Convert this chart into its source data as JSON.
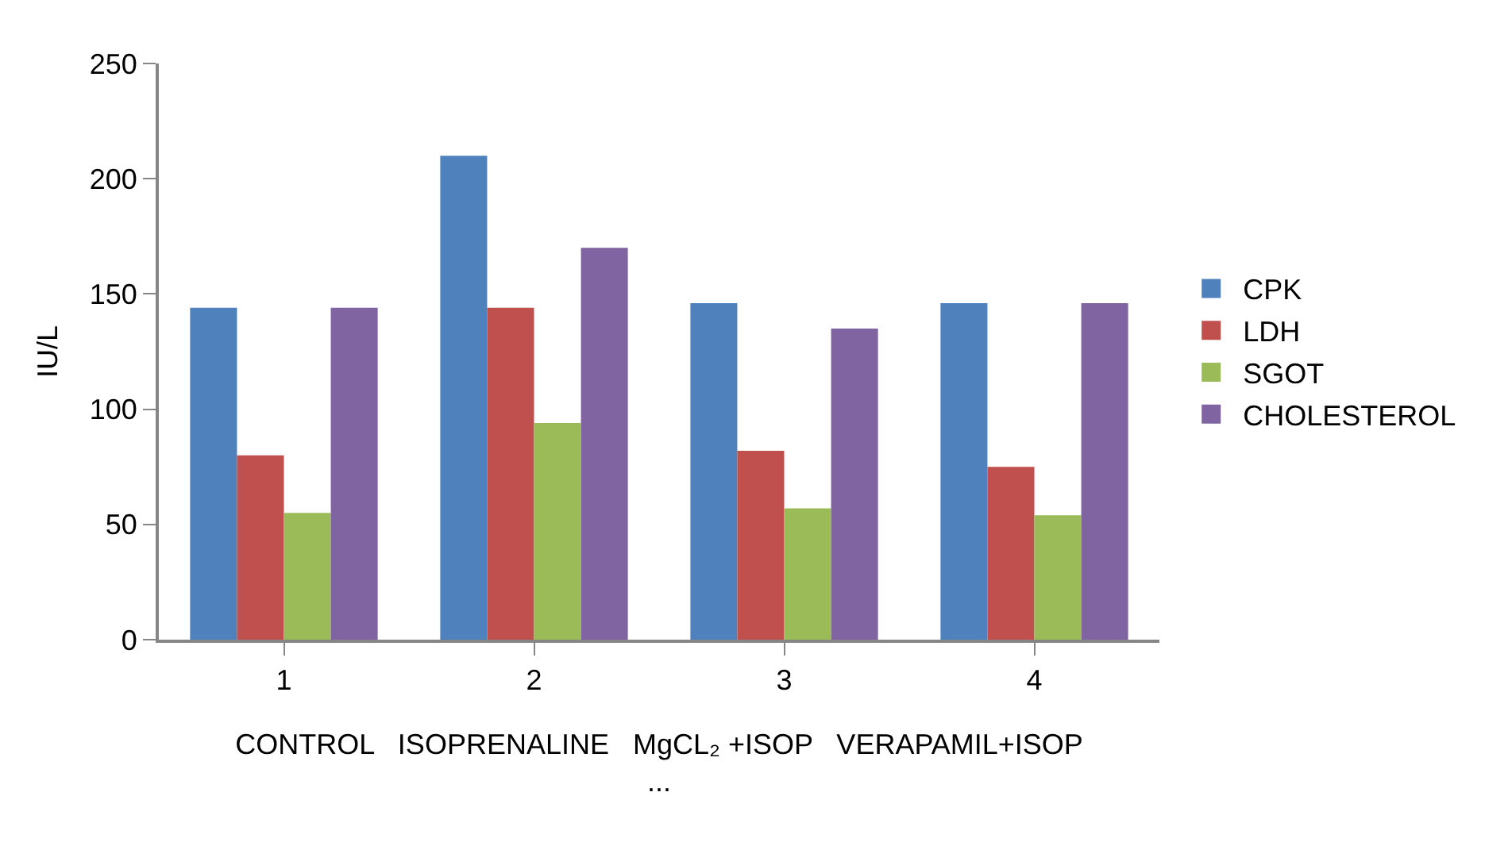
{
  "chart_data": {
    "type": "bar",
    "ylabel": "IU/L",
    "xlabel": "CONTROL   ISOPRENALINE   MgCL₂ +ISOP   VERAPAMIL+ISOP\n...",
    "categories": [
      "1",
      "2",
      "3",
      "4"
    ],
    "series": [
      {
        "name": "CPK",
        "color": "#4f81bd",
        "values": [
          144,
          210,
          146,
          146
        ]
      },
      {
        "name": "LDH",
        "color": "#c0504d",
        "values": [
          80,
          144,
          82,
          75
        ]
      },
      {
        "name": "SGOT",
        "color": "#9bbb59",
        "values": [
          55,
          94,
          57,
          54
        ]
      },
      {
        "name": "CHOLESTEROL",
        "color": "#8064a2",
        "values": [
          144,
          170,
          135,
          146
        ]
      }
    ],
    "ylim": [
      0,
      250
    ],
    "yticks": [
      0,
      50,
      100,
      150,
      200,
      250
    ],
    "grid": false,
    "legend": "right"
  }
}
